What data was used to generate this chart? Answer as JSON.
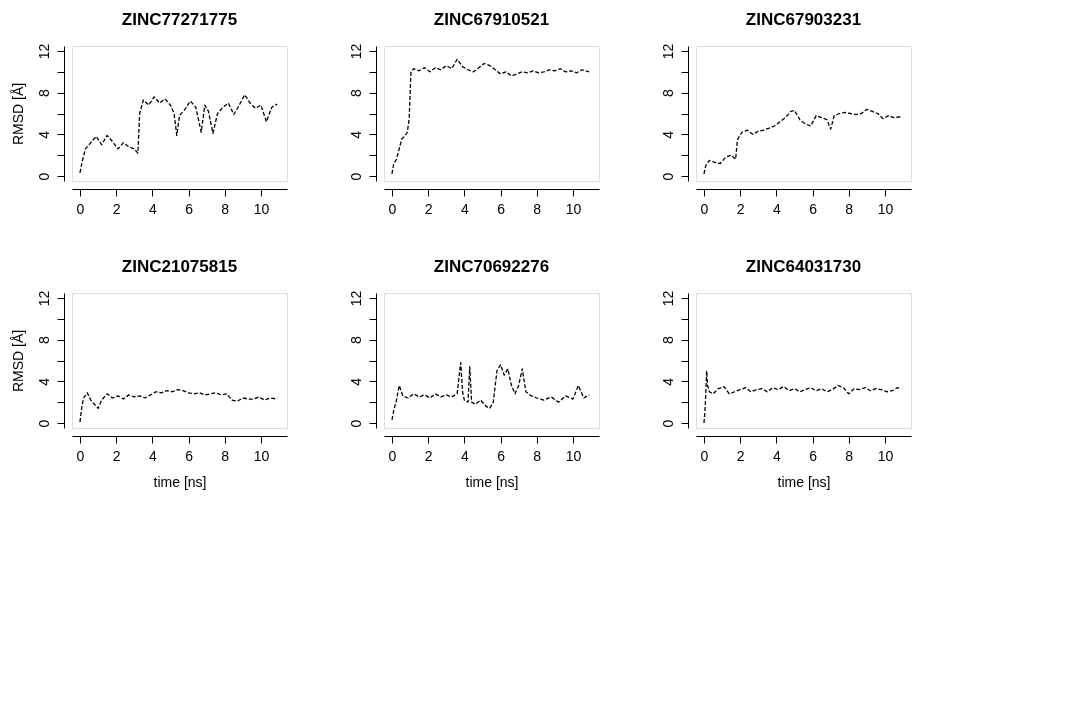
{
  "chart_data": [
    {
      "type": "line",
      "title": "ZINC77271775",
      "ylabel": "RMSD [Å]",
      "line_style": "dashed",
      "grid": false,
      "xlim": [
        -0.44,
        11.44
      ],
      "ylim": [
        -0.48,
        12.48
      ],
      "xticks": [
        0,
        2,
        4,
        6,
        8,
        10
      ],
      "yticks": [
        0,
        {
          "value": 2,
          "label": null
        },
        4,
        {
          "value": 6,
          "label": null
        },
        8,
        {
          "value": 10,
          "label": null
        },
        12
      ],
      "series": [
        {
          "color": "#000000",
          "x": [
            0,
            0.1,
            0.3,
            0.6,
            0.9,
            1.2,
            1.5,
            1.8,
            2.1,
            2.4,
            2.7,
            3.0,
            3.2,
            3.3,
            3.5,
            3.8,
            4.1,
            4.4,
            4.7,
            5.0,
            5.2,
            5.35,
            5.5,
            5.8,
            6.1,
            6.4,
            6.7,
            6.9,
            7.1,
            7.35,
            7.6,
            7.9,
            8.2,
            8.5,
            8.8,
            9.1,
            9.4,
            9.7,
            10.0,
            10.3,
            10.6,
            10.9
          ],
          "values": [
            0.3,
            1.2,
            2.6,
            3.2,
            3.8,
            3.0,
            3.9,
            3.3,
            2.6,
            3.2,
            2.8,
            2.6,
            2.2,
            6.0,
            7.3,
            6.8,
            7.6,
            7.0,
            7.4,
            6.8,
            6.0,
            3.9,
            5.8,
            6.4,
            7.2,
            6.6,
            4.2,
            6.8,
            6.2,
            4.1,
            6.0,
            6.6,
            7.0,
            5.9,
            6.8,
            7.8,
            7.0,
            6.5,
            6.8,
            5.2,
            6.6,
            6.9
          ]
        }
      ]
    },
    {
      "type": "line",
      "title": "ZINC67910521",
      "line_style": "dashed",
      "grid": false,
      "xlim": [
        -0.44,
        11.44
      ],
      "ylim": [
        -0.48,
        12.48
      ],
      "xticks": [
        0,
        2,
        4,
        6,
        8,
        10
      ],
      "yticks": [
        0,
        {
          "value": 2,
          "label": null
        },
        4,
        {
          "value": 6,
          "label": null
        },
        8,
        {
          "value": 10,
          "label": null
        },
        12
      ],
      "series": [
        {
          "color": "#000000",
          "x": [
            0,
            0.1,
            0.25,
            0.4,
            0.55,
            0.7,
            0.85,
            0.95,
            1.05,
            1.2,
            1.5,
            1.8,
            2.1,
            2.4,
            2.7,
            3.0,
            3.3,
            3.6,
            3.9,
            4.2,
            4.5,
            4.8,
            5.1,
            5.4,
            5.7,
            6.0,
            6.3,
            6.6,
            6.9,
            7.2,
            7.5,
            7.8,
            8.1,
            8.4,
            8.7,
            9.0,
            9.3,
            9.6,
            9.9,
            10.2,
            10.5,
            10.9
          ],
          "values": [
            0.2,
            1.2,
            1.6,
            2.6,
            3.6,
            3.8,
            4.2,
            5.5,
            10.0,
            10.3,
            10.1,
            10.4,
            10.0,
            10.4,
            10.2,
            10.6,
            10.3,
            11.2,
            10.5,
            10.2,
            10.0,
            10.4,
            10.8,
            10.6,
            10.2,
            9.8,
            10.0,
            9.6,
            9.8,
            10.0,
            9.9,
            10.1,
            9.9,
            10.0,
            10.2,
            10.1,
            10.3,
            10.0,
            10.1,
            9.9,
            10.2,
            10.0
          ]
        }
      ]
    },
    {
      "type": "line",
      "title": "ZINC67903231",
      "line_style": "dashed",
      "grid": false,
      "xlim": [
        -0.44,
        11.44
      ],
      "ylim": [
        -0.48,
        12.48
      ],
      "xticks": [
        0,
        2,
        4,
        6,
        8,
        10
      ],
      "yticks": [
        0,
        {
          "value": 2,
          "label": null
        },
        4,
        {
          "value": 6,
          "label": null
        },
        8,
        {
          "value": 10,
          "label": null
        },
        12
      ],
      "series": [
        {
          "color": "#000000",
          "x": [
            0,
            0.1,
            0.3,
            0.6,
            0.9,
            1.2,
            1.5,
            1.75,
            1.85,
            2.1,
            2.4,
            2.7,
            3.0,
            3.3,
            3.6,
            3.9,
            4.2,
            4.5,
            4.8,
            5.0,
            5.3,
            5.6,
            5.9,
            6.2,
            6.5,
            6.8,
            7.0,
            7.2,
            7.5,
            7.8,
            8.1,
            8.4,
            8.7,
            9.0,
            9.3,
            9.6,
            9.9,
            10.2,
            10.5,
            10.9
          ],
          "values": [
            0.2,
            1.0,
            1.5,
            1.3,
            1.2,
            1.8,
            2.0,
            1.6,
            3.5,
            4.2,
            4.4,
            4.0,
            4.3,
            4.4,
            4.6,
            4.8,
            5.2,
            5.6,
            6.2,
            6.3,
            5.4,
            5.0,
            4.8,
            5.8,
            5.6,
            5.4,
            4.5,
            5.8,
            6.0,
            6.1,
            6.0,
            5.9,
            6.0,
            6.4,
            6.2,
            6.0,
            5.5,
            5.8,
            5.6,
            5.7
          ]
        }
      ]
    },
    {
      "type": "line",
      "title": "ZINC21075815",
      "ylabel": "RMSD [Å]",
      "xlabel": "time [ns]",
      "line_style": "dashed",
      "grid": false,
      "xlim": [
        -0.44,
        11.44
      ],
      "ylim": [
        -0.48,
        12.48
      ],
      "xticks": [
        0,
        2,
        4,
        6,
        8,
        10
      ],
      "yticks": [
        0,
        {
          "value": 2,
          "label": null
        },
        4,
        {
          "value": 6,
          "label": null
        },
        8,
        {
          "value": 10,
          "label": null
        },
        12
      ],
      "series": [
        {
          "color": "#000000",
          "x": [
            0,
            0.1,
            0.2,
            0.4,
            0.6,
            0.8,
            1.0,
            1.2,
            1.5,
            1.8,
            2.1,
            2.4,
            2.7,
            3.0,
            3.3,
            3.6,
            3.9,
            4.2,
            4.5,
            4.8,
            5.1,
            5.4,
            5.7,
            6.0,
            6.3,
            6.6,
            6.9,
            7.2,
            7.5,
            7.8,
            8.1,
            8.4,
            8.7,
            9.0,
            9.3,
            9.6,
            9.9,
            10.2,
            10.5,
            10.9
          ],
          "values": [
            0.1,
            1.5,
            2.4,
            2.9,
            2.2,
            1.8,
            1.4,
            2.2,
            2.8,
            2.4,
            2.6,
            2.3,
            2.7,
            2.5,
            2.6,
            2.4,
            2.7,
            3.0,
            2.9,
            3.1,
            3.0,
            3.2,
            3.1,
            2.9,
            2.8,
            2.9,
            2.7,
            2.8,
            2.9,
            2.7,
            2.8,
            2.2,
            2.1,
            2.4,
            2.3,
            2.3,
            2.5,
            2.2,
            2.4,
            2.3
          ]
        }
      ]
    },
    {
      "type": "line",
      "title": "ZINC70692276",
      "xlabel": "time [ns]",
      "line_style": "dashed",
      "grid": false,
      "xlim": [
        -0.44,
        11.44
      ],
      "ylim": [
        -0.48,
        12.48
      ],
      "xticks": [
        0,
        2,
        4,
        6,
        8,
        10
      ],
      "yticks": [
        0,
        {
          "value": 2,
          "label": null
        },
        4,
        {
          "value": 6,
          "label": null
        },
        8,
        {
          "value": 10,
          "label": null
        },
        12
      ],
      "series": [
        {
          "color": "#000000",
          "x": [
            0,
            0.1,
            0.25,
            0.4,
            0.6,
            0.9,
            1.2,
            1.5,
            1.8,
            2.1,
            2.4,
            2.7,
            3.0,
            3.3,
            3.6,
            3.8,
            3.9,
            4.0,
            4.2,
            4.3,
            4.4,
            4.6,
            4.9,
            5.2,
            5.4,
            5.6,
            5.8,
            6.0,
            6.2,
            6.4,
            6.6,
            6.8,
            7.0,
            7.2,
            7.4,
            7.7,
            8.0,
            8.4,
            8.8,
            9.2,
            9.6,
            10.0,
            10.3,
            10.6,
            10.9
          ],
          "values": [
            0.3,
            1.2,
            2.2,
            3.6,
            2.6,
            2.4,
            2.8,
            2.5,
            2.7,
            2.4,
            2.8,
            2.5,
            2.7,
            2.5,
            2.8,
            5.8,
            3.0,
            2.2,
            2.0,
            5.4,
            2.0,
            1.8,
            2.2,
            1.6,
            1.4,
            2.0,
            5.0,
            5.6,
            4.6,
            5.2,
            3.6,
            2.8,
            3.6,
            5.2,
            3.0,
            2.6,
            2.4,
            2.2,
            2.5,
            2.0,
            2.6,
            2.3,
            3.6,
            2.4,
            2.7
          ]
        }
      ]
    },
    {
      "type": "line",
      "title": "ZINC64031730",
      "xlabel": "time [ns]",
      "line_style": "dashed",
      "grid": false,
      "xlim": [
        -0.44,
        11.44
      ],
      "ylim": [
        -0.48,
        12.48
      ],
      "xticks": [
        0,
        2,
        4,
        6,
        8,
        10
      ],
      "yticks": [
        0,
        {
          "value": 2,
          "label": null
        },
        4,
        {
          "value": 6,
          "label": null
        },
        8,
        {
          "value": 10,
          "label": null
        },
        12
      ],
      "series": [
        {
          "color": "#000000",
          "x": [
            0,
            0.05,
            0.1,
            0.15,
            0.2,
            0.3,
            0.5,
            0.8,
            1.1,
            1.4,
            1.7,
            2.0,
            2.3,
            2.6,
            2.9,
            3.2,
            3.5,
            3.8,
            4.1,
            4.4,
            4.7,
            5.0,
            5.3,
            5.6,
            5.9,
            6.2,
            6.5,
            6.8,
            7.1,
            7.4,
            7.7,
            8.0,
            8.3,
            8.6,
            8.9,
            9.2,
            9.5,
            9.8,
            10.1,
            10.4,
            10.7,
            10.9
          ],
          "values": [
            0.0,
            1.0,
            2.8,
            5.0,
            3.6,
            3.0,
            2.8,
            3.3,
            3.5,
            2.8,
            3.0,
            3.2,
            3.4,
            3.0,
            3.2,
            3.3,
            3.0,
            3.4,
            3.2,
            3.5,
            3.1,
            3.3,
            3.0,
            3.2,
            3.4,
            3.1,
            3.3,
            3.0,
            3.2,
            3.6,
            3.4,
            2.8,
            3.3,
            3.2,
            3.4,
            3.1,
            3.3,
            3.2,
            3.0,
            3.1,
            3.4,
            3.3
          ]
        }
      ]
    }
  ]
}
